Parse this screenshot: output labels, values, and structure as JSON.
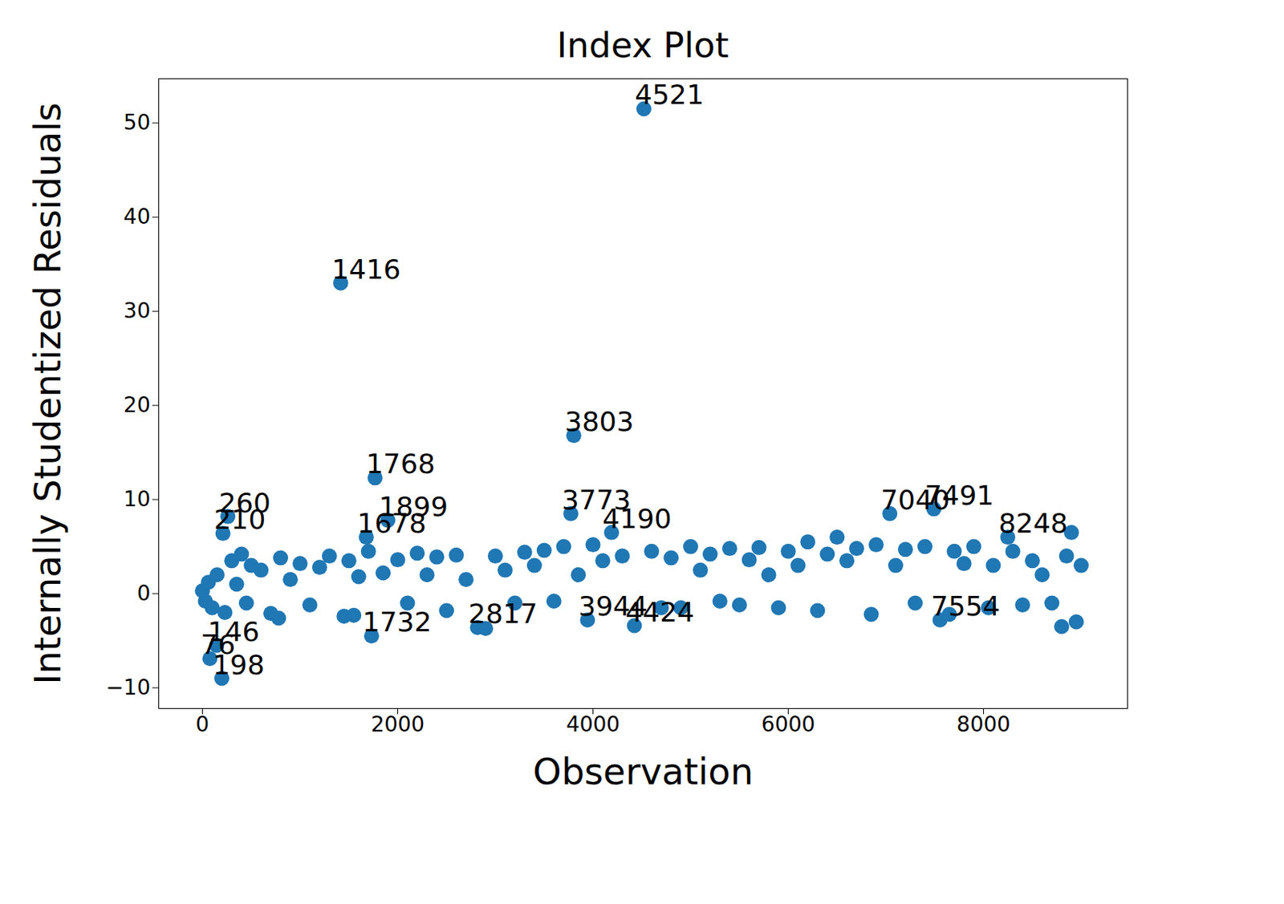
{
  "chart_data": {
    "type": "scatter",
    "title": "Index Plot",
    "x_label": "Observation",
    "y_label": "Internally Studentized Residuals",
    "color": "#1f77b4",
    "xlim": [
      -448,
      9475
    ],
    "ylim": [
      -12.2,
      54.7
    ],
    "xticks": [
      0,
      2000,
      4000,
      6000,
      8000
    ],
    "yticks": [
      -10,
      0,
      10,
      20,
      30,
      40,
      50
    ],
    "x": [
      0,
      30,
      60,
      76,
      100,
      146,
      150,
      198,
      210,
      230,
      260,
      300,
      350,
      400,
      450,
      500,
      600,
      700,
      780,
      800,
      900,
      1000,
      1100,
      1200,
      1300,
      1416,
      1450,
      1500,
      1550,
      1600,
      1678,
      1700,
      1732,
      1768,
      1850,
      1899,
      2000,
      2100,
      2200,
      2300,
      2400,
      2500,
      2600,
      2700,
      2817,
      2900,
      3000,
      3100,
      3200,
      3300,
      3400,
      3500,
      3600,
      3700,
      3773,
      3803,
      3850,
      3944,
      4000,
      4100,
      4190,
      4300,
      4424,
      4521,
      4600,
      4700,
      4800,
      4900,
      5000,
      5100,
      5200,
      5300,
      5400,
      5500,
      5600,
      5700,
      5800,
      5900,
      6000,
      6100,
      6200,
      6300,
      6400,
      6500,
      6600,
      6700,
      6850,
      6900,
      7040,
      7100,
      7200,
      7300,
      7400,
      7491,
      7554,
      7650,
      7700,
      7800,
      7900,
      8050,
      8100,
      8248,
      8300,
      8400,
      8500,
      8600,
      8700,
      8800,
      8850,
      8900,
      8950,
      9000
    ],
    "values": [
      0.3,
      -0.8,
      1.2,
      -6.9,
      -1.5,
      -5.5,
      2.0,
      -9.0,
      6.4,
      -2.0,
      8.2,
      3.5,
      1.0,
      4.2,
      -1.0,
      3.0,
      2.5,
      -2.1,
      -2.6,
      3.8,
      1.5,
      3.2,
      -1.2,
      2.8,
      4.0,
      33.0,
      -2.4,
      3.5,
      -2.3,
      1.8,
      6.0,
      4.5,
      -4.5,
      12.3,
      2.2,
      7.8,
      3.6,
      -1.0,
      4.3,
      2.0,
      3.9,
      -1.8,
      4.1,
      1.5,
      -3.6,
      -3.7,
      4.0,
      2.5,
      -1.0,
      4.4,
      3.0,
      4.6,
      -0.8,
      5.0,
      8.5,
      16.8,
      2.0,
      -2.8,
      5.2,
      3.5,
      6.5,
      4.0,
      -3.4,
      51.5,
      4.5,
      -1.5,
      3.8,
      -1.5,
      5.0,
      2.5,
      4.2,
      -0.8,
      4.8,
      -1.2,
      3.6,
      4.9,
      2.0,
      -1.5,
      4.5,
      3.0,
      5.5,
      -1.8,
      4.2,
      6.0,
      3.5,
      4.8,
      -2.2,
      5.2,
      8.5,
      3.0,
      4.7,
      -1.0,
      5.0,
      9.0,
      -2.8,
      -2.2,
      4.5,
      3.2,
      5.0,
      -1.5,
      3.0,
      6.0,
      4.5,
      -1.2,
      3.5,
      2.0,
      -1.0,
      -3.5,
      4.0,
      6.5,
      -3.0,
      3.0
    ],
    "point_labels": [
      null,
      null,
      null,
      "76",
      null,
      "146",
      null,
      "198",
      "210",
      null,
      "260",
      null,
      null,
      null,
      null,
      null,
      null,
      null,
      null,
      null,
      null,
      null,
      null,
      null,
      null,
      "1416",
      null,
      null,
      null,
      null,
      "1678",
      null,
      "1732",
      "1768",
      null,
      "1899",
      null,
      null,
      null,
      null,
      null,
      null,
      null,
      null,
      "2817",
      null,
      null,
      null,
      null,
      null,
      null,
      null,
      null,
      null,
      "3773",
      "3803",
      null,
      "3944",
      null,
      null,
      "4190",
      null,
      "4424",
      "4521",
      null,
      null,
      null,
      null,
      null,
      null,
      null,
      null,
      null,
      null,
      null,
      null,
      null,
      null,
      null,
      null,
      null,
      null,
      null,
      null,
      null,
      null,
      null,
      null,
      "7040",
      null,
      null,
      null,
      null,
      "7491",
      "7554",
      null,
      null,
      null,
      null,
      null,
      null,
      "8248",
      null,
      null,
      null,
      null,
      null,
      null,
      null,
      null,
      null,
      null
    ]
  }
}
